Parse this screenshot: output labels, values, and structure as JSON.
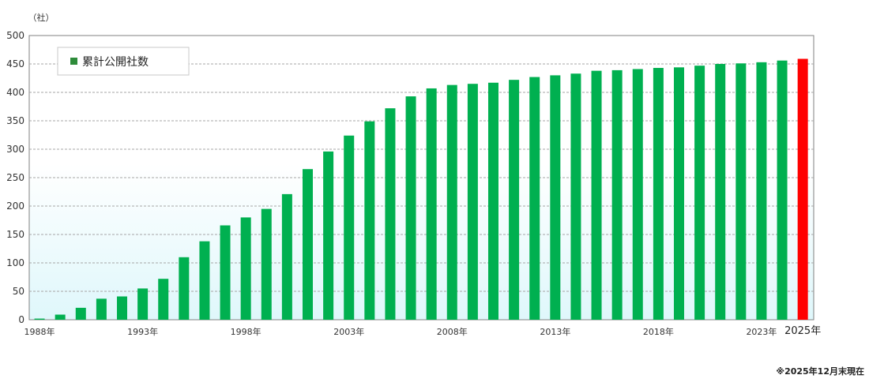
{
  "chart_data": {
    "type": "bar",
    "unit_label": "（社）",
    "legend": {
      "label": "累計公開社数",
      "placement": "top-left"
    },
    "years": [
      1988,
      1989,
      1990,
      1991,
      1992,
      1993,
      1994,
      1995,
      1996,
      1997,
      1998,
      1999,
      2000,
      2001,
      2002,
      2003,
      2004,
      2005,
      2006,
      2007,
      2008,
      2009,
      2010,
      2011,
      2012,
      2013,
      2014,
      2015,
      2016,
      2017,
      2018,
      2019,
      2020,
      2021,
      2022,
      2023,
      2024,
      2025
    ],
    "values": [
      2,
      9,
      21,
      37,
      41,
      55,
      72,
      110,
      138,
      166,
      180,
      195,
      221,
      265,
      296,
      324,
      349,
      372,
      393,
      407,
      413,
      415,
      417,
      422,
      427,
      430,
      433,
      438,
      439,
      441,
      443,
      444,
      447,
      450,
      451,
      453,
      456,
      459
    ],
    "x_tick_labels": [
      {
        "index": 0,
        "label": "1988年"
      },
      {
        "index": 5,
        "label": "1993年"
      },
      {
        "index": 10,
        "label": "1998年"
      },
      {
        "index": 15,
        "label": "2003年"
      },
      {
        "index": 20,
        "label": "2008年"
      },
      {
        "index": 25,
        "label": "2013年"
      },
      {
        "index": 30,
        "label": "2018年"
      },
      {
        "index": 35,
        "label": "2023年"
      },
      {
        "index": 37,
        "label": "2025年"
      }
    ],
    "y_ticks": [
      0,
      50,
      100,
      150,
      200,
      250,
      300,
      350,
      400,
      450,
      500
    ],
    "ylim": [
      0,
      500
    ],
    "grid": true,
    "highlight_index": 37,
    "colors": {
      "bar": "#00b050",
      "highlight": "#ff0000",
      "legend_swatch": "#2e8b3a",
      "grid": "#a6a6a6"
    },
    "footnote": "※2025年12月末現在"
  }
}
